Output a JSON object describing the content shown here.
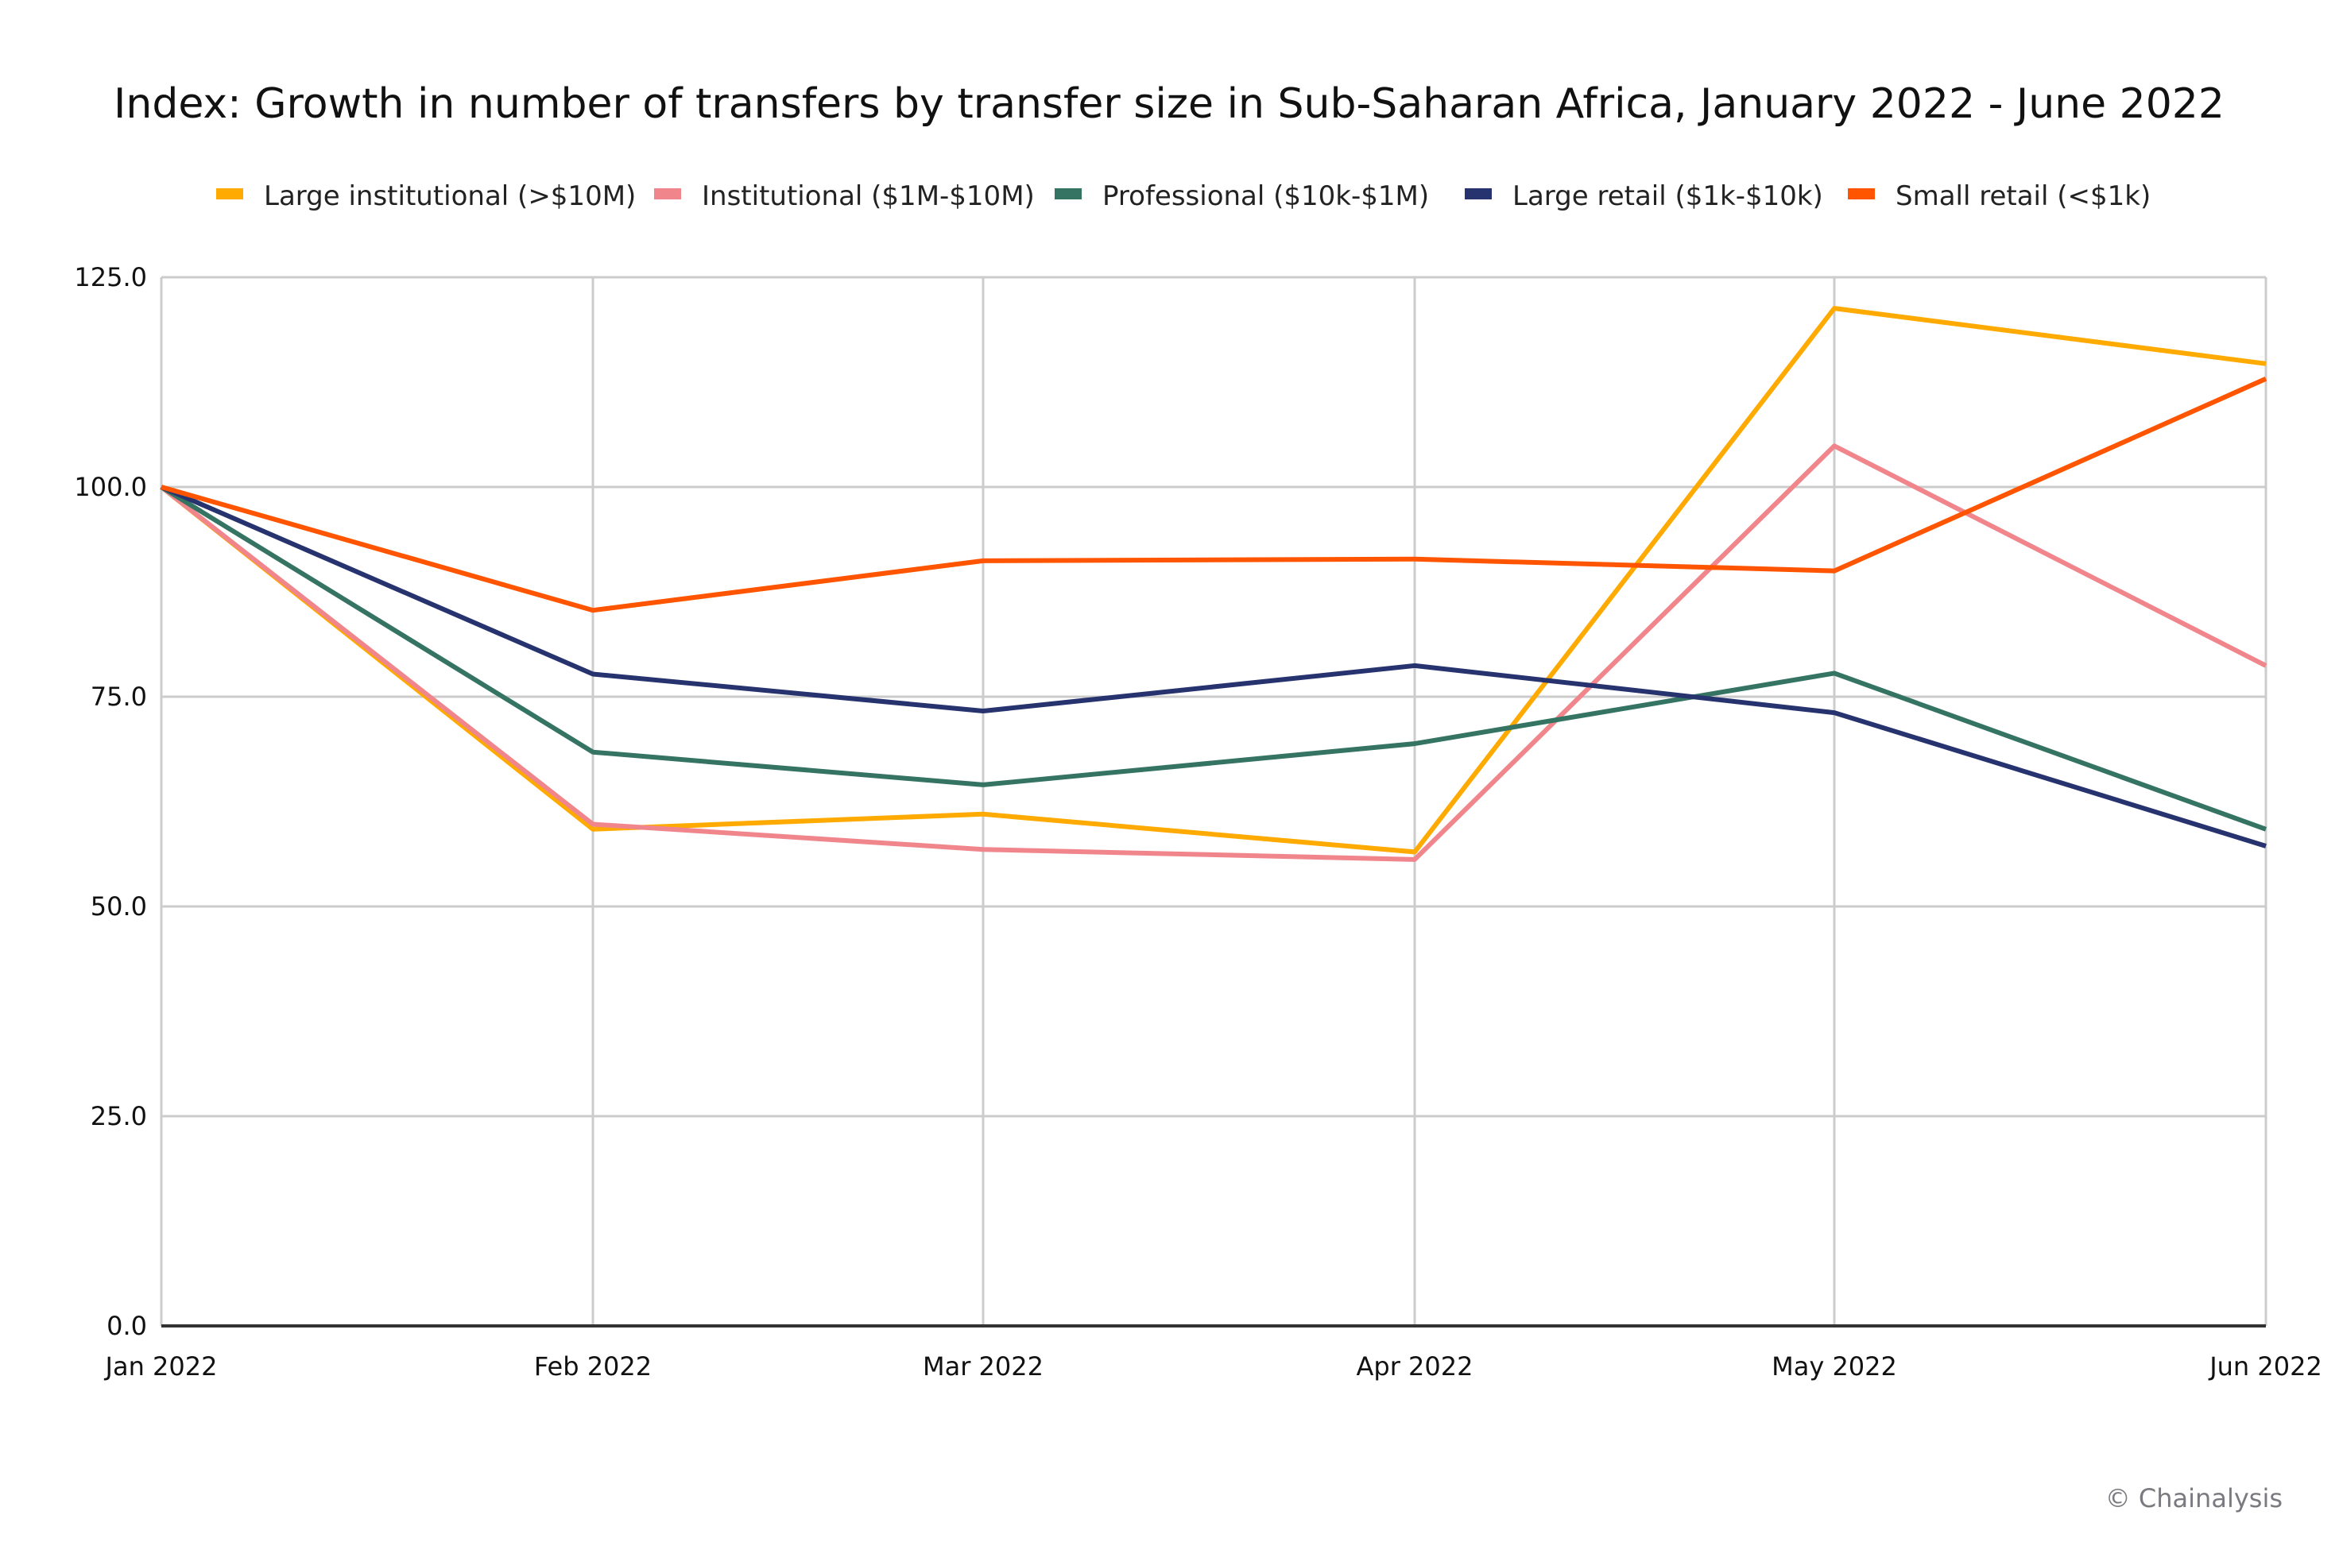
{
  "chart_data": {
    "type": "line",
    "title": "Index: Growth in number of transfers by transfer size in Sub-Saharan Africa, January 2022 - June 2022",
    "xlabel": "",
    "ylabel": "",
    "categories": [
      "Jan 2022",
      "Feb 2022",
      "Mar 2022",
      "Apr 2022",
      "May 2022",
      "Jun 2022"
    ],
    "ylim": [
      0,
      125
    ],
    "yticks": [
      0,
      25,
      50,
      75,
      100,
      125
    ],
    "ytick_labels": [
      "0.0",
      "25.0",
      "50.0",
      "75.0",
      "100.0",
      "125.0"
    ],
    "grid": true,
    "legend_position": "top",
    "series": [
      {
        "name": "Large institutional (>$10M)",
        "color": "#FFAA00",
        "values": [
          100,
          59.2,
          61.0,
          56.5,
          121.3,
          114.7
        ]
      },
      {
        "name": "Institutional ($1M-$10M)",
        "color": "#F0868C",
        "values": [
          100,
          59.8,
          56.8,
          55.6,
          104.9,
          78.7
        ]
      },
      {
        "name": "Professional ($10k-$1M)",
        "color": "#357362",
        "values": [
          100,
          68.4,
          64.5,
          69.4,
          77.8,
          59.2
        ]
      },
      {
        "name": "Large retail ($1k-$10k)",
        "color": "#26336E",
        "values": [
          100,
          77.7,
          73.3,
          78.7,
          73.1,
          57.2
        ]
      },
      {
        "name": "Small retail (<$1k)",
        "color": "#FF5500",
        "values": [
          100,
          85.3,
          91.2,
          91.4,
          90.0,
          112.9
        ]
      }
    ]
  },
  "footer": {
    "credit": "© Chainalysis"
  }
}
